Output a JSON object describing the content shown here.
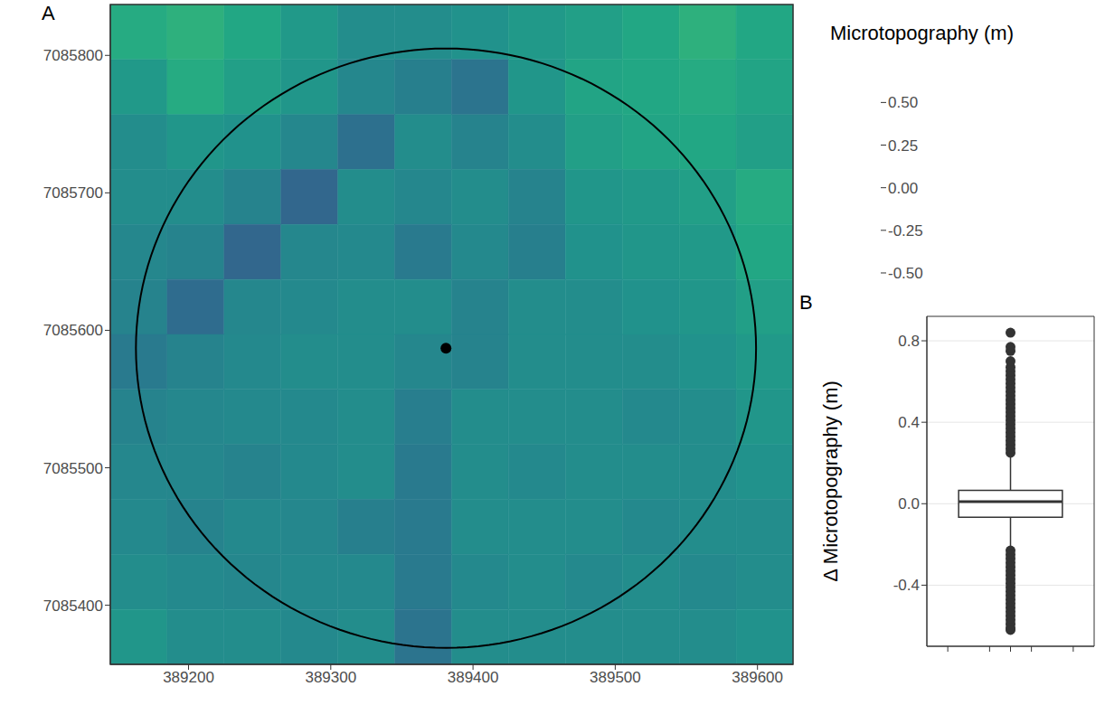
{
  "chart_data": [
    {
      "panel": "A",
      "type": "heatmap",
      "xlim": [
        389145,
        389625
      ],
      "ylim": [
        7085357,
        7085837
      ],
      "xticks": [
        389200,
        389300,
        389400,
        389500,
        389600
      ],
      "yticks": [
        7085400,
        7085500,
        7085600,
        7085700,
        7085800
      ],
      "grid": false,
      "x_edges": [
        389145,
        389185,
        389225,
        389265,
        389305,
        389345,
        389385,
        389425,
        389465,
        389505,
        389545,
        389585,
        389625
      ],
      "y_edges": [
        7085837,
        7085797,
        7085757,
        7085717,
        7085677,
        7085637,
        7085597,
        7085557,
        7085517,
        7085477,
        7085437,
        7085397,
        7085357
      ],
      "cells": [
        [
          0.22,
          0.25,
          0.2,
          0.12,
          0.05,
          0.05,
          0.08,
          0.12,
          0.15,
          0.2,
          0.25,
          0.2
        ],
        [
          0.12,
          0.22,
          0.15,
          0.1,
          0.02,
          -0.02,
          -0.08,
          0.1,
          0.18,
          0.2,
          0.22,
          0.18
        ],
        [
          0.05,
          0.1,
          0.08,
          0.02,
          -0.1,
          0.05,
          0.0,
          0.05,
          0.15,
          0.18,
          0.2,
          0.15
        ],
        [
          0.05,
          0.05,
          0.0,
          -0.15,
          0.05,
          0.02,
          0.05,
          0.0,
          0.1,
          0.12,
          0.15,
          0.22
        ],
        [
          0.02,
          0.0,
          -0.15,
          0.02,
          0.03,
          -0.05,
          0.03,
          -0.02,
          0.08,
          0.1,
          0.12,
          0.2
        ],
        [
          0.0,
          -0.12,
          0.02,
          0.03,
          0.05,
          0.05,
          0.0,
          0.05,
          0.05,
          0.08,
          0.1,
          0.15
        ],
        [
          -0.05,
          0.0,
          0.03,
          0.05,
          0.05,
          0.02,
          0.0,
          0.05,
          0.05,
          0.05,
          0.08,
          0.12
        ],
        [
          0.0,
          0.02,
          0.03,
          0.03,
          0.05,
          -0.03,
          0.05,
          0.05,
          0.05,
          0.03,
          0.05,
          0.1
        ],
        [
          0.02,
          0.02,
          0.0,
          0.03,
          0.05,
          -0.05,
          0.05,
          0.03,
          0.05,
          0.05,
          0.05,
          0.08
        ],
        [
          0.03,
          0.0,
          0.03,
          0.02,
          -0.02,
          -0.05,
          0.05,
          0.05,
          0.05,
          0.03,
          0.05,
          0.05
        ],
        [
          0.05,
          0.03,
          0.02,
          0.03,
          0.03,
          -0.05,
          0.03,
          0.05,
          0.03,
          0.05,
          0.03,
          0.05
        ],
        [
          0.1,
          0.05,
          0.05,
          0.03,
          0.05,
          -0.08,
          0.05,
          0.05,
          0.05,
          0.05,
          0.05,
          0.08
        ]
      ],
      "colorbar": {
        "title": "Microtopography (m)",
        "range": [
          -0.585,
          0.73
        ],
        "ticks": [
          {
            "value": -0.5,
            "label": "-0.50"
          },
          -0.25,
          {
            "value": 0,
            "label": "0.00"
          },
          0.25,
          {
            "value": 0.5,
            "label": "0.50"
          }
        ]
      },
      "circle": {
        "center": [
          389381,
          7085587
        ],
        "radius": 218,
        "color": "#000000"
      },
      "point": [
        389381,
        7085587
      ]
    },
    {
      "panel": "B",
      "type": "box",
      "y_label": "Δ Microtopography (m)",
      "ylim": [
        -0.7,
        0.92
      ],
      "yticks": [
        -0.4,
        {
          "value": 0,
          "label": "0.0"
        },
        0.4,
        0.8
      ],
      "grid": true,
      "tick_labels": "y",
      "q1": -0.066,
      "median": 0.01,
      "q3": 0.066,
      "whisker_low": -0.22,
      "whisker_high": 0.24,
      "outliers": [
        0.25,
        0.27,
        0.29,
        0.31,
        0.33,
        0.35,
        0.37,
        0.39,
        0.41,
        0.43,
        0.45,
        0.47,
        0.49,
        0.51,
        0.53,
        0.55,
        0.57,
        0.59,
        0.61,
        0.63,
        0.65,
        0.67,
        0.7,
        0.75,
        0.77,
        0.84,
        -0.23,
        -0.25,
        -0.27,
        -0.29,
        -0.31,
        -0.33,
        -0.35,
        -0.37,
        -0.39,
        -0.41,
        -0.43,
        -0.45,
        -0.47,
        -0.49,
        -0.51,
        -0.53,
        -0.55,
        -0.57,
        -0.59,
        -0.61,
        -0.62
      ],
      "color": "#333333"
    }
  ]
}
